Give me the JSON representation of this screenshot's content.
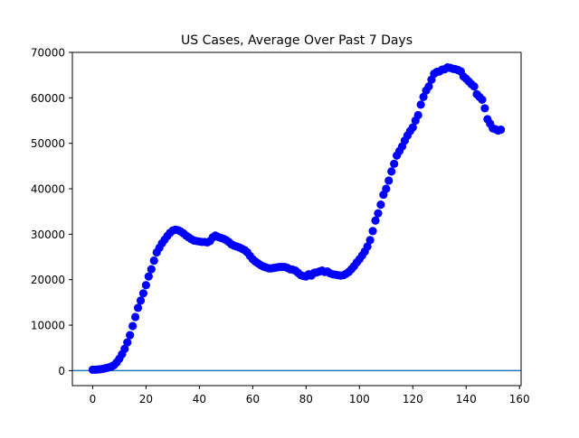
{
  "chart_data": {
    "type": "scatter",
    "title": "US Cases, Average Over Past 7 Days",
    "xlabel": "",
    "ylabel": "",
    "xlim": [
      -7.6,
      160.6
    ],
    "ylim": [
      -3300,
      70000
    ],
    "xticks": [
      0,
      20,
      40,
      60,
      80,
      100,
      120,
      140,
      160
    ],
    "yticks": [
      0,
      10000,
      20000,
      30000,
      40000,
      50000,
      60000,
      70000
    ],
    "grid": false,
    "marker_color": "#0000ff",
    "reference_line": {
      "y": 0,
      "color": "#1f77b4"
    },
    "points": [
      {
        "x": 0,
        "y": 200
      },
      {
        "x": 1,
        "y": 200
      },
      {
        "x": 2,
        "y": 250
      },
      {
        "x": 3,
        "y": 300
      },
      {
        "x": 4,
        "y": 400
      },
      {
        "x": 5,
        "y": 550
      },
      {
        "x": 6,
        "y": 700
      },
      {
        "x": 7,
        "y": 900
      },
      {
        "x": 8,
        "y": 1200
      },
      {
        "x": 9,
        "y": 1800
      },
      {
        "x": 10,
        "y": 2600
      },
      {
        "x": 11,
        "y": 3600
      },
      {
        "x": 12,
        "y": 4800
      },
      {
        "x": 13,
        "y": 6200
      },
      {
        "x": 14,
        "y": 7800
      },
      {
        "x": 15,
        "y": 9800
      },
      {
        "x": 16,
        "y": 11800
      },
      {
        "x": 17,
        "y": 13800
      },
      {
        "x": 18,
        "y": 15400
      },
      {
        "x": 19,
        "y": 17000
      },
      {
        "x": 20,
        "y": 18800
      },
      {
        "x": 21,
        "y": 20700
      },
      {
        "x": 22,
        "y": 22300
      },
      {
        "x": 23,
        "y": 24200
      },
      {
        "x": 24,
        "y": 26000
      },
      {
        "x": 25,
        "y": 27000
      },
      {
        "x": 26,
        "y": 28000
      },
      {
        "x": 27,
        "y": 28800
      },
      {
        "x": 28,
        "y": 29600
      },
      {
        "x": 29,
        "y": 30300
      },
      {
        "x": 30,
        "y": 30800
      },
      {
        "x": 31,
        "y": 31000
      },
      {
        "x": 32,
        "y": 30900
      },
      {
        "x": 33,
        "y": 30600
      },
      {
        "x": 34,
        "y": 30200
      },
      {
        "x": 35,
        "y": 29700
      },
      {
        "x": 36,
        "y": 29300
      },
      {
        "x": 37,
        "y": 28900
      },
      {
        "x": 38,
        "y": 28600
      },
      {
        "x": 39,
        "y": 28500
      },
      {
        "x": 40,
        "y": 28400
      },
      {
        "x": 41,
        "y": 28300
      },
      {
        "x": 42,
        "y": 28300
      },
      {
        "x": 43,
        "y": 28200
      },
      {
        "x": 44,
        "y": 28500
      },
      {
        "x": 45,
        "y": 29300
      },
      {
        "x": 46,
        "y": 29700
      },
      {
        "x": 47,
        "y": 29400
      },
      {
        "x": 48,
        "y": 29200
      },
      {
        "x": 49,
        "y": 29000
      },
      {
        "x": 50,
        "y": 28700
      },
      {
        "x": 51,
        "y": 28300
      },
      {
        "x": 52,
        "y": 27800
      },
      {
        "x": 53,
        "y": 27500
      },
      {
        "x": 54,
        "y": 27300
      },
      {
        "x": 55,
        "y": 27100
      },
      {
        "x": 56,
        "y": 26800
      },
      {
        "x": 57,
        "y": 26500
      },
      {
        "x": 58,
        "y": 26000
      },
      {
        "x": 59,
        "y": 25200
      },
      {
        "x": 60,
        "y": 24500
      },
      {
        "x": 61,
        "y": 24000
      },
      {
        "x": 62,
        "y": 23600
      },
      {
        "x": 63,
        "y": 23200
      },
      {
        "x": 64,
        "y": 22900
      },
      {
        "x": 65,
        "y": 22700
      },
      {
        "x": 66,
        "y": 22500
      },
      {
        "x": 67,
        "y": 22500
      },
      {
        "x": 68,
        "y": 22600
      },
      {
        "x": 69,
        "y": 22700
      },
      {
        "x": 70,
        "y": 22800
      },
      {
        "x": 71,
        "y": 22800
      },
      {
        "x": 72,
        "y": 22800
      },
      {
        "x": 73,
        "y": 22600
      },
      {
        "x": 74,
        "y": 22300
      },
      {
        "x": 75,
        "y": 22200
      },
      {
        "x": 76,
        "y": 22000
      },
      {
        "x": 77,
        "y": 21500
      },
      {
        "x": 78,
        "y": 21000
      },
      {
        "x": 79,
        "y": 20800
      },
      {
        "x": 80,
        "y": 20700
      },
      {
        "x": 81,
        "y": 21200
      },
      {
        "x": 82,
        "y": 20900
      },
      {
        "x": 83,
        "y": 21500
      },
      {
        "x": 84,
        "y": 21600
      },
      {
        "x": 85,
        "y": 21800
      },
      {
        "x": 86,
        "y": 22000
      },
      {
        "x": 87,
        "y": 21700
      },
      {
        "x": 88,
        "y": 21800
      },
      {
        "x": 89,
        "y": 21400
      },
      {
        "x": 90,
        "y": 21200
      },
      {
        "x": 91,
        "y": 21100
      },
      {
        "x": 92,
        "y": 21000
      },
      {
        "x": 93,
        "y": 20900
      },
      {
        "x": 94,
        "y": 21000
      },
      {
        "x": 95,
        "y": 21300
      },
      {
        "x": 96,
        "y": 21700
      },
      {
        "x": 97,
        "y": 22300
      },
      {
        "x": 98,
        "y": 23000
      },
      {
        "x": 99,
        "y": 23800
      },
      {
        "x": 100,
        "y": 24500
      },
      {
        "x": 101,
        "y": 25300
      },
      {
        "x": 102,
        "y": 26200
      },
      {
        "x": 103,
        "y": 27300
      },
      {
        "x": 104,
        "y": 28700
      },
      {
        "x": 105,
        "y": 30700
      },
      {
        "x": 106,
        "y": 33000
      },
      {
        "x": 107,
        "y": 34600
      },
      {
        "x": 108,
        "y": 36500
      },
      {
        "x": 109,
        "y": 38700
      },
      {
        "x": 110,
        "y": 40000
      },
      {
        "x": 111,
        "y": 41800
      },
      {
        "x": 112,
        "y": 43800
      },
      {
        "x": 113,
        "y": 45500
      },
      {
        "x": 114,
        "y": 47300
      },
      {
        "x": 115,
        "y": 48300
      },
      {
        "x": 116,
        "y": 49300
      },
      {
        "x": 117,
        "y": 50600
      },
      {
        "x": 118,
        "y": 51700
      },
      {
        "x": 119,
        "y": 52700
      },
      {
        "x": 120,
        "y": 53500
      },
      {
        "x": 121,
        "y": 55000
      },
      {
        "x": 122,
        "y": 56200
      },
      {
        "x": 123,
        "y": 58500
      },
      {
        "x": 124,
        "y": 60200
      },
      {
        "x": 125,
        "y": 61600
      },
      {
        "x": 126,
        "y": 62500
      },
      {
        "x": 127,
        "y": 64000
      },
      {
        "x": 128,
        "y": 65300
      },
      {
        "x": 129,
        "y": 65700
      },
      {
        "x": 130,
        "y": 65800
      },
      {
        "x": 131,
        "y": 66200
      },
      {
        "x": 132,
        "y": 66300
      },
      {
        "x": 133,
        "y": 66700
      },
      {
        "x": 134,
        "y": 66600
      },
      {
        "x": 135,
        "y": 66400
      },
      {
        "x": 136,
        "y": 66300
      },
      {
        "x": 137,
        "y": 66100
      },
      {
        "x": 138,
        "y": 65800
      },
      {
        "x": 139,
        "y": 64700
      },
      {
        "x": 140,
        "y": 64200
      },
      {
        "x": 141,
        "y": 63600
      },
      {
        "x": 142,
        "y": 63000
      },
      {
        "x": 143,
        "y": 62500
      },
      {
        "x": 144,
        "y": 60800
      },
      {
        "x": 145,
        "y": 60200
      },
      {
        "x": 146,
        "y": 59600
      },
      {
        "x": 147,
        "y": 57700
      },
      {
        "x": 148,
        "y": 55300
      },
      {
        "x": 149,
        "y": 54300
      },
      {
        "x": 150,
        "y": 53300
      },
      {
        "x": 151,
        "y": 53100
      },
      {
        "x": 152,
        "y": 52800
      },
      {
        "x": 153,
        "y": 53000
      }
    ]
  }
}
